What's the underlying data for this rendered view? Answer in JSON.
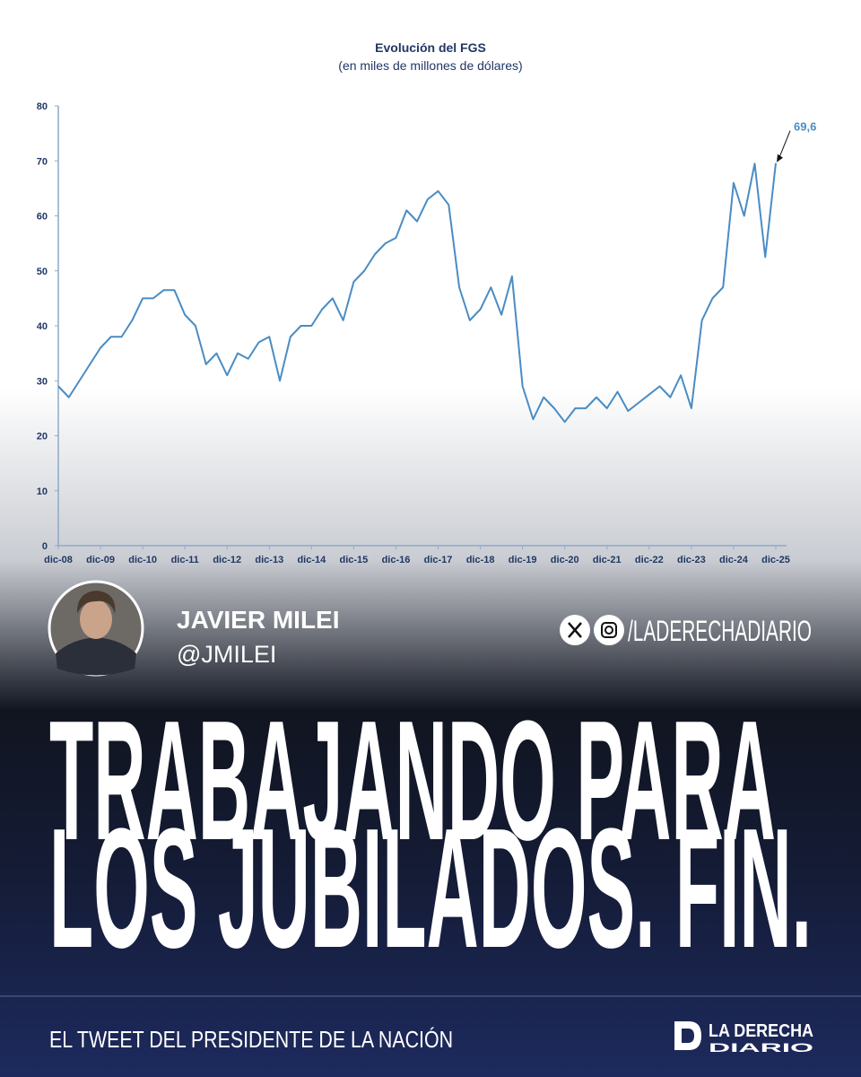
{
  "chart_data": {
    "type": "line",
    "title": "Evolución del FGS",
    "subtitle": "(en miles de millones de dólares)",
    "categories": [
      "dic-08",
      null,
      null,
      null,
      "dic-09",
      null,
      null,
      null,
      "dic-10",
      null,
      null,
      null,
      "dic-11",
      null,
      null,
      null,
      "dic-12",
      null,
      null,
      null,
      "dic-13",
      null,
      null,
      null,
      "dic-14",
      null,
      null,
      null,
      "dic-15",
      null,
      null,
      null,
      "dic-16",
      null,
      null,
      null,
      "dic-17",
      null,
      null,
      null,
      "dic-18",
      null,
      null,
      null,
      "dic-19",
      null,
      null,
      null,
      "dic-20",
      null,
      null,
      null,
      "dic-21",
      null,
      null,
      null,
      "dic-22",
      null,
      null,
      null,
      "dic-23",
      null,
      null,
      null,
      "dic-24",
      null,
      null,
      null,
      "dic-25"
    ],
    "values": [
      29,
      27,
      30,
      33,
      36,
      38,
      38,
      41,
      45,
      45,
      46.5,
      46.5,
      42,
      40,
      33,
      35,
      31,
      35,
      34,
      37,
      38,
      30,
      38,
      40,
      40,
      43,
      45,
      41,
      48,
      50,
      53,
      55,
      56,
      61,
      59,
      63,
      64.5,
      62,
      47,
      41,
      43,
      47,
      42,
      49,
      29,
      23,
      27,
      25,
      22.5,
      25,
      25,
      27,
      25,
      28,
      24.5,
      26,
      27.5,
      29,
      27,
      31,
      25,
      41,
      45,
      47,
      66,
      60,
      69.5,
      52.5,
      69.6
    ],
    "value_labels": [
      null,
      null,
      null,
      null,
      null,
      null,
      null,
      null,
      null,
      null,
      null,
      null,
      null,
      null,
      null,
      null,
      null,
      null,
      null,
      null,
      null,
      null,
      null,
      null,
      null,
      null,
      null,
      null,
      null,
      null,
      null,
      null,
      null,
      null,
      null,
      null,
      null,
      null,
      null,
      null,
      null,
      null,
      null,
      null,
      null,
      null,
      null,
      null,
      null,
      null,
      null,
      null,
      null,
      null,
      null,
      null,
      null,
      null,
      null,
      null,
      null,
      null,
      null,
      null,
      null,
      null,
      null,
      null,
      "69,6"
    ],
    "color": "#4a8cc4",
    "ylim": [
      0,
      80
    ],
    "yticks": [
      0,
      10,
      20,
      30,
      40,
      50,
      60,
      70,
      80
    ],
    "grid": false
  },
  "profile": {
    "name": "JAVIER MILEI",
    "handle": "@JMILEI"
  },
  "brand": {
    "handle": "/LADERECHADIARIO",
    "logo_top": "LA DERECHA",
    "logo_bottom": "DIARIO"
  },
  "headline": [
    "TRABAJANDO PARA",
    "LOS JUBILADOS. FIN."
  ],
  "footer": "EL TWEET DEL PRESIDENTE DE LA NACIÓN"
}
